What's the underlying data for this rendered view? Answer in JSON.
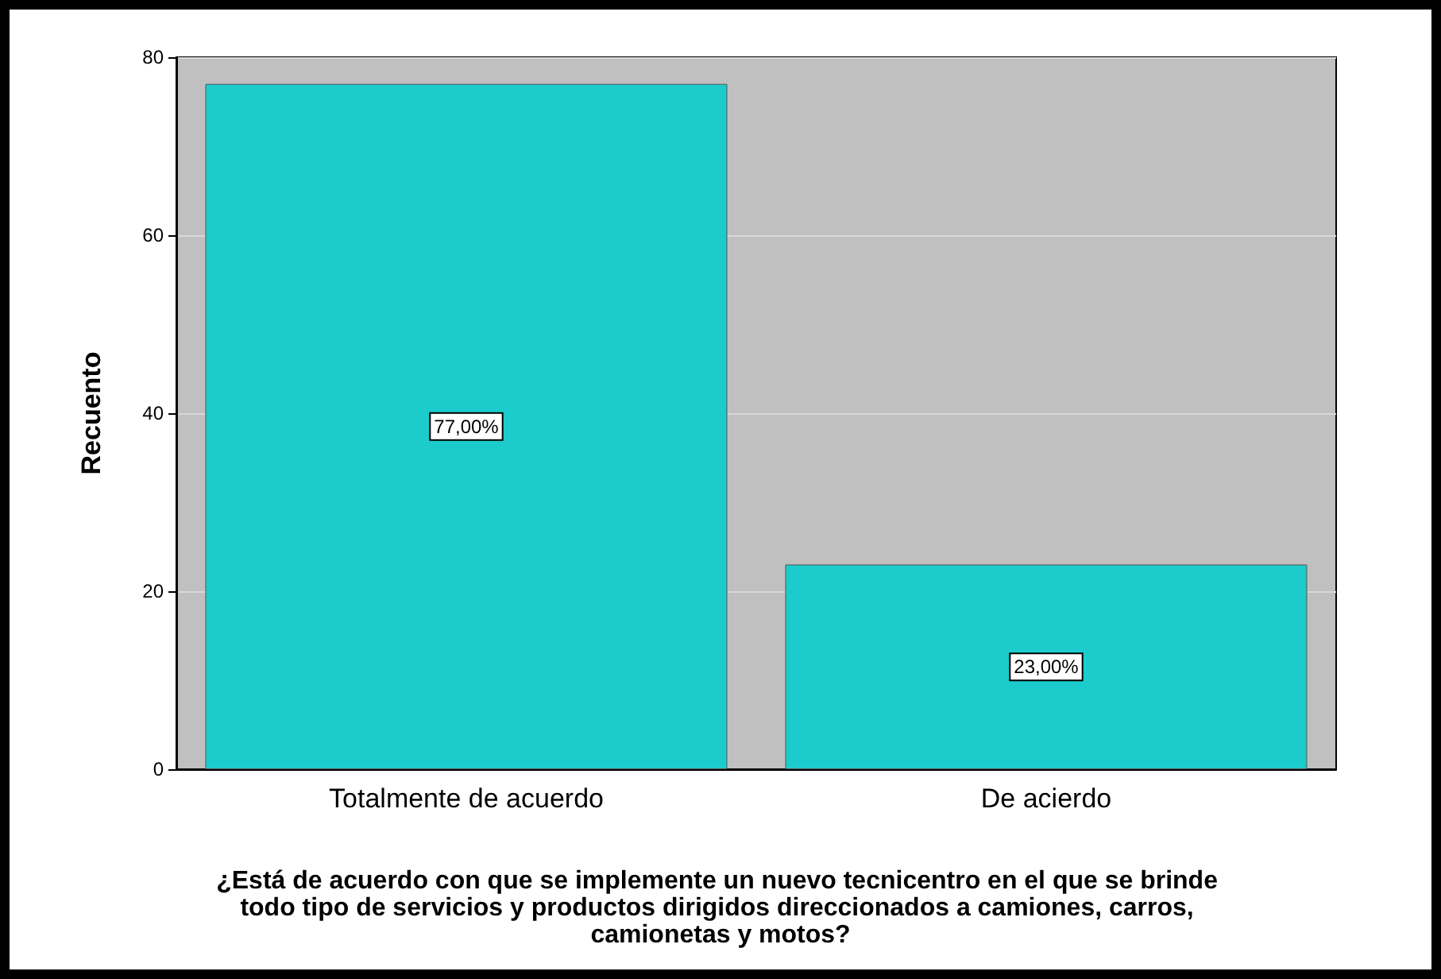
{
  "chart_data": {
    "type": "bar",
    "categories": [
      "Totalmente de acuerdo",
      "De acierdo"
    ],
    "values": [
      77,
      23
    ],
    "value_labels": [
      "77,00%",
      "23,00%"
    ],
    "color": "#1ccccc",
    "ylim": [
      0,
      80
    ],
    "yticks": [
      0,
      20,
      40,
      60,
      80
    ],
    "grid": "y",
    "ylabel": "Recuento",
    "xlabel": "¿Está de acuerdo con que se implemente un nuevo tecnicentro en el que se brinde todo tipo de servicios y productos dirigidos direccionados a camiones, carros, camionetas y motos?"
  }
}
